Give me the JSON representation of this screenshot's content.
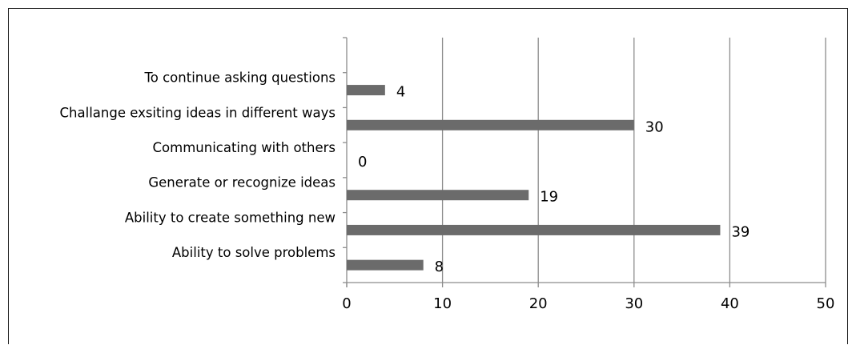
{
  "chart_data": {
    "type": "bar",
    "orientation": "horizontal",
    "categories": [
      "Ability to solve problems",
      "Ability to create something new",
      "Generate or recognize ideas",
      "Communicating with others",
      "Challange exsiting ideas in different ways",
      "To continue asking questions"
    ],
    "values": [
      8,
      39,
      19,
      0,
      30,
      4
    ],
    "xlim": [
      0,
      50
    ],
    "xticks": [
      "0",
      "10",
      "20",
      "30",
      "40",
      "50"
    ],
    "grid": "vertical",
    "bar_color": "#6b6b6b",
    "gridline_color": "#8c8c8c",
    "data_labels": true,
    "legend": "none",
    "title": "",
    "xlabel": "",
    "ylabel": ""
  }
}
